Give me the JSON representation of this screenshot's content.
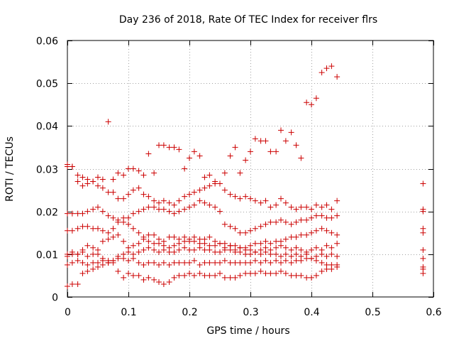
{
  "chart_data": {
    "type": "scatter",
    "title": "Day 236 of 2018, Rate Of TEC Index for receiver flrs",
    "xlabel": "GPS time / hours",
    "ylabel": "ROTI / TECUs",
    "xlim": [
      0,
      0.6
    ],
    "ylim": [
      0,
      0.06
    ],
    "xticks": [
      0,
      0.1,
      0.2,
      0.3,
      0.4,
      0.5,
      0.6
    ],
    "yticks": [
      0,
      0.01,
      0.02,
      0.03,
      0.04,
      0.05,
      0.06
    ],
    "xtick_labels": [
      "0",
      "0.1",
      "0.2",
      "0.3",
      "0.4",
      "0.5",
      "0.6"
    ],
    "ytick_labels": [
      "0",
      "0.01",
      "0.02",
      "0.03",
      "0.04",
      "0.05",
      "0.06"
    ],
    "grid": true,
    "marker": "+",
    "color": "#cc0000",
    "series": [
      {
        "name": "ROTI",
        "x": [
          0.0,
          0.008,
          0.017,
          0.025,
          0.033,
          0.042,
          0.05,
          0.058,
          0.067,
          0.075,
          0.083,
          0.092,
          0.1,
          0.108,
          0.117,
          0.125,
          0.133,
          0.142,
          0.15,
          0.158,
          0.167,
          0.175,
          0.183,
          0.192,
          0.2,
          0.208,
          0.217,
          0.225,
          0.233,
          0.242,
          0.25,
          0.258,
          0.267,
          0.275,
          0.283,
          0.292,
          0.3,
          0.308,
          0.317,
          0.325,
          0.333,
          0.342,
          0.35,
          0.358,
          0.367,
          0.375,
          0.383,
          0.392,
          0.4,
          0.408,
          0.417,
          0.425,
          0.433,
          0.442,
          0.0,
          0.008,
          0.017,
          0.025,
          0.033,
          0.042,
          0.05,
          0.058,
          0.067,
          0.075,
          0.083,
          0.092,
          0.1,
          0.108,
          0.117,
          0.125,
          0.133,
          0.142,
          0.15,
          0.158,
          0.167,
          0.175,
          0.183,
          0.192,
          0.2,
          0.208,
          0.217,
          0.225,
          0.233,
          0.242,
          0.25,
          0.258,
          0.267,
          0.275,
          0.283,
          0.292,
          0.3,
          0.308,
          0.317,
          0.325,
          0.333,
          0.342,
          0.35,
          0.358,
          0.367,
          0.375,
          0.383,
          0.392,
          0.4,
          0.408,
          0.417,
          0.425,
          0.433,
          0.442,
          0.0,
          0.008,
          0.017,
          0.025,
          0.033,
          0.042,
          0.05,
          0.058,
          0.067,
          0.075,
          0.083,
          0.092,
          0.1,
          0.108,
          0.117,
          0.125,
          0.133,
          0.142,
          0.15,
          0.158,
          0.167,
          0.175,
          0.183,
          0.192,
          0.2,
          0.208,
          0.217,
          0.225,
          0.233,
          0.242,
          0.25,
          0.258,
          0.267,
          0.275,
          0.283,
          0.292,
          0.3,
          0.308,
          0.317,
          0.325,
          0.333,
          0.342,
          0.35,
          0.358,
          0.367,
          0.375,
          0.383,
          0.392,
          0.4,
          0.408,
          0.417,
          0.425,
          0.433,
          0.442,
          0.0,
          0.008,
          0.017,
          0.025,
          0.033,
          0.042,
          0.05,
          0.058,
          0.067,
          0.075,
          0.083,
          0.092,
          0.1,
          0.108,
          0.117,
          0.125,
          0.133,
          0.142,
          0.15,
          0.158,
          0.167,
          0.175,
          0.183,
          0.192,
          0.2,
          0.208,
          0.217,
          0.225,
          0.233,
          0.242,
          0.25,
          0.258,
          0.267,
          0.275,
          0.283,
          0.292,
          0.3,
          0.308,
          0.317,
          0.325,
          0.333,
          0.342,
          0.35,
          0.358,
          0.367,
          0.375,
          0.383,
          0.392,
          0.4,
          0.408,
          0.417,
          0.425,
          0.433,
          0.442,
          0.0,
          0.008,
          0.017,
          0.025,
          0.033,
          0.042,
          0.05,
          0.058,
          0.067,
          0.075,
          0.083,
          0.092,
          0.1,
          0.108,
          0.117,
          0.125,
          0.133,
          0.142,
          0.15,
          0.158,
          0.167,
          0.175,
          0.183,
          0.192,
          0.2,
          0.208,
          0.217,
          0.225,
          0.233,
          0.242,
          0.25,
          0.258,
          0.267,
          0.275,
          0.283,
          0.292,
          0.3,
          0.308,
          0.317,
          0.325,
          0.333,
          0.342,
          0.35,
          0.358,
          0.367,
          0.375,
          0.383,
          0.392,
          0.4,
          0.408,
          0.417,
          0.425,
          0.433,
          0.442,
          0.0,
          0.008,
          0.017,
          0.025,
          0.033,
          0.042,
          0.05,
          0.058,
          0.067,
          0.075,
          0.083,
          0.092,
          0.1,
          0.108,
          0.117,
          0.125,
          0.133,
          0.142,
          0.15,
          0.158,
          0.167,
          0.175,
          0.183,
          0.192,
          0.2,
          0.208,
          0.217,
          0.225,
          0.233,
          0.242,
          0.25,
          0.258,
          0.267,
          0.275,
          0.283,
          0.292,
          0.3,
          0.308,
          0.317,
          0.325,
          0.333,
          0.342,
          0.35,
          0.358,
          0.367,
          0.375,
          0.383,
          0.392,
          0.4,
          0.408,
          0.417,
          0.425,
          0.433,
          0.442,
          0.0,
          0.008,
          0.017,
          0.025,
          0.033,
          0.042,
          0.05,
          0.058,
          0.067,
          0.075,
          0.083,
          0.092,
          0.1,
          0.108,
          0.117,
          0.125,
          0.133,
          0.142,
          0.15,
          0.158,
          0.167,
          0.175,
          0.183,
          0.192,
          0.2,
          0.208,
          0.217,
          0.225,
          0.233,
          0.242,
          0.25,
          0.258,
          0.267,
          0.275,
          0.283,
          0.292,
          0.3,
          0.308,
          0.317,
          0.325,
          0.333,
          0.342,
          0.35,
          0.358,
          0.367,
          0.375,
          0.383,
          0.392,
          0.4,
          0.408,
          0.417,
          0.425,
          0.433,
          0.442,
          0.0,
          0.008,
          0.017,
          0.025,
          0.033,
          0.042,
          0.05,
          0.058,
          0.067,
          0.075,
          0.083,
          0.092,
          0.1,
          0.108,
          0.117,
          0.125,
          0.133,
          0.142,
          0.15,
          0.158,
          0.167,
          0.175,
          0.183,
          0.192,
          0.2,
          0.208,
          0.217,
          0.225,
          0.233,
          0.242,
          0.25,
          0.258,
          0.267,
          0.275,
          0.283,
          0.292,
          0.3,
          0.308,
          0.317,
          0.325,
          0.333,
          0.342,
          0.35,
          0.358,
          0.367,
          0.375,
          0.383,
          0.392,
          0.4,
          0.408,
          0.417,
          0.425,
          0.433,
          0.442,
          0.583,
          0.583,
          0.583,
          0.583,
          0.583,
          0.583,
          0.583,
          0.583,
          0.583,
          0.583
        ],
        "y": [
          0.0025,
          0.003,
          0.003,
          0.0055,
          0.006,
          0.0065,
          0.007,
          0.0075,
          0.008,
          0.008,
          0.006,
          0.0045,
          0.0055,
          0.005,
          0.005,
          0.004,
          0.0045,
          0.004,
          0.0035,
          0.003,
          0.0035,
          0.0045,
          0.005,
          0.005,
          0.0055,
          0.005,
          0.0055,
          0.005,
          0.005,
          0.005,
          0.0055,
          0.0045,
          0.0045,
          0.0045,
          0.005,
          0.0055,
          0.0055,
          0.0055,
          0.006,
          0.0055,
          0.0055,
          0.0055,
          0.006,
          0.0055,
          0.005,
          0.005,
          0.005,
          0.0045,
          0.0045,
          0.005,
          0.006,
          0.0065,
          0.0065,
          0.007,
          0.0075,
          0.008,
          0.0085,
          0.008,
          0.0075,
          0.008,
          0.008,
          0.0085,
          0.008,
          0.0085,
          0.009,
          0.009,
          0.0085,
          0.009,
          0.008,
          0.0075,
          0.008,
          0.008,
          0.0075,
          0.008,
          0.0075,
          0.008,
          0.008,
          0.008,
          0.008,
          0.0085,
          0.0075,
          0.008,
          0.008,
          0.008,
          0.008,
          0.0085,
          0.008,
          0.008,
          0.008,
          0.008,
          0.008,
          0.0085,
          0.008,
          0.0085,
          0.008,
          0.0085,
          0.008,
          0.0085,
          0.008,
          0.0085,
          0.0085,
          0.009,
          0.009,
          0.0085,
          0.008,
          0.0075,
          0.0075,
          0.0075,
          0.0095,
          0.01,
          0.01,
          0.0105,
          0.0095,
          0.01,
          0.01,
          0.009,
          0.0085,
          0.0085,
          0.0095,
          0.01,
          0.0105,
          0.01,
          0.0105,
          0.011,
          0.0115,
          0.011,
          0.0105,
          0.011,
          0.0105,
          0.0105,
          0.011,
          0.0115,
          0.011,
          0.011,
          0.0115,
          0.011,
          0.011,
          0.0105,
          0.0105,
          0.011,
          0.011,
          0.0105,
          0.0105,
          0.011,
          0.01,
          0.0105,
          0.01,
          0.0105,
          0.01,
          0.01,
          0.0095,
          0.01,
          0.0095,
          0.01,
          0.0095,
          0.01,
          0.009,
          0.0095,
          0.01,
          0.0095,
          0.01,
          0.0095,
          0.0155,
          0.0155,
          0.016,
          0.0165,
          0.0165,
          0.016,
          0.016,
          0.0155,
          0.015,
          0.016,
          0.0175,
          0.0185,
          0.017,
          0.016,
          0.015,
          0.0135,
          0.013,
          0.0125,
          0.0125,
          0.012,
          0.0115,
          0.012,
          0.0125,
          0.013,
          0.013,
          0.013,
          0.0125,
          0.0125,
          0.012,
          0.012,
          0.0125,
          0.0125,
          0.012,
          0.012,
          0.0115,
          0.0115,
          0.012,
          0.0125,
          0.0125,
          0.013,
          0.0125,
          0.013,
          0.013,
          0.0135,
          0.014,
          0.014,
          0.0145,
          0.0145,
          0.015,
          0.0155,
          0.016,
          0.0155,
          0.015,
          0.0145,
          0.0195,
          0.0195,
          0.0195,
          0.0195,
          0.02,
          0.0205,
          0.021,
          0.02,
          0.019,
          0.0185,
          0.018,
          0.0175,
          0.0185,
          0.0195,
          0.02,
          0.0205,
          0.021,
          0.021,
          0.0205,
          0.0205,
          0.02,
          0.0195,
          0.02,
          0.0205,
          0.021,
          0.0215,
          0.0225,
          0.022,
          0.0215,
          0.021,
          0.02,
          0.017,
          0.0165,
          0.016,
          0.015,
          0.015,
          0.0155,
          0.016,
          0.0165,
          0.017,
          0.0175,
          0.0175,
          0.018,
          0.0175,
          0.017,
          0.0175,
          0.018,
          0.018,
          0.0185,
          0.019,
          0.019,
          0.0185,
          0.0185,
          0.019,
          0.0305,
          0.0305,
          0.027,
          0.026,
          0.0265,
          0.027,
          0.026,
          0.0255,
          0.0245,
          0.0245,
          0.023,
          0.023,
          0.024,
          0.025,
          0.0255,
          0.024,
          0.0235,
          0.0225,
          0.022,
          0.0225,
          0.022,
          0.0215,
          0.0225,
          0.0235,
          0.024,
          0.0245,
          0.025,
          0.0255,
          0.026,
          0.0265,
          0.0265,
          0.025,
          0.024,
          0.0235,
          0.023,
          0.0235,
          0.023,
          0.0225,
          0.022,
          0.0225,
          0.021,
          0.0215,
          0.023,
          0.022,
          0.021,
          0.0205,
          0.021,
          0.021,
          0.0205,
          0.0215,
          0.021,
          0.0215,
          0.0205,
          0.0225,
          0.031,
          0.0305,
          0.0285,
          0.028,
          0.0275,
          0.027,
          0.028,
          0.0275,
          0.041,
          0.0275,
          0.029,
          0.0285,
          0.03,
          0.03,
          0.0295,
          0.0285,
          0.0335,
          0.029,
          0.0355,
          0.0355,
          0.035,
          0.035,
          0.0345,
          0.03,
          0.0325,
          0.034,
          0.033,
          0.028,
          0.0285,
          0.027,
          0.0265,
          0.029,
          0.033,
          0.035,
          0.029,
          0.032,
          0.034,
          0.037,
          0.0365,
          0.0365,
          0.034,
          0.034,
          0.039,
          0.0365,
          0.0385,
          0.0355,
          0.0325,
          0.0455,
          0.045,
          0.0465,
          0.0525,
          0.0535,
          0.054,
          0.0515,
          0.01,
          0.0105,
          0.01,
          0.011,
          0.012,
          0.0115,
          0.011,
          0.013,
          0.0135,
          0.014,
          0.0145,
          0.013,
          0.0115,
          0.012,
          0.0125,
          0.014,
          0.0145,
          0.0145,
          0.0135,
          0.013,
          0.014,
          0.014,
          0.0135,
          0.014,
          0.0135,
          0.014,
          0.0135,
          0.0135,
          0.014,
          0.013,
          0.0125,
          0.0115,
          0.012,
          0.011,
          0.0115,
          0.01,
          0.011,
          0.0105,
          0.011,
          0.0115,
          0.011,
          0.0115,
          0.012,
          0.0115,
          0.011,
          0.0115,
          0.011,
          0.0105,
          0.011,
          0.0115,
          0.011,
          0.012,
          0.0115,
          0.0125,
          0.0265,
          0.0205,
          0.02,
          0.016,
          0.015,
          0.011,
          0.009,
          0.007,
          0.0065,
          0.0055
        ]
      }
    ]
  }
}
